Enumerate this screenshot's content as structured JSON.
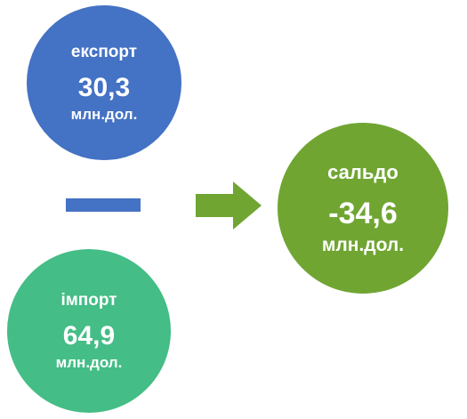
{
  "export": {
    "label": "експорт",
    "value": "30,3",
    "unit": "млн.дол.",
    "color": "#4472c4"
  },
  "import": {
    "label": "імпорт",
    "value": "64,9",
    "unit": "млн.дол.",
    "color": "#44bd86"
  },
  "balance": {
    "label": "сальдо",
    "value": "-34,6",
    "unit": "млн.дол.",
    "color": "#70a532"
  },
  "operator": {
    "icon": "minus-icon",
    "color": "#4472c4"
  },
  "result_arrow": {
    "icon": "arrow-right-icon",
    "color": "#70a532"
  }
}
